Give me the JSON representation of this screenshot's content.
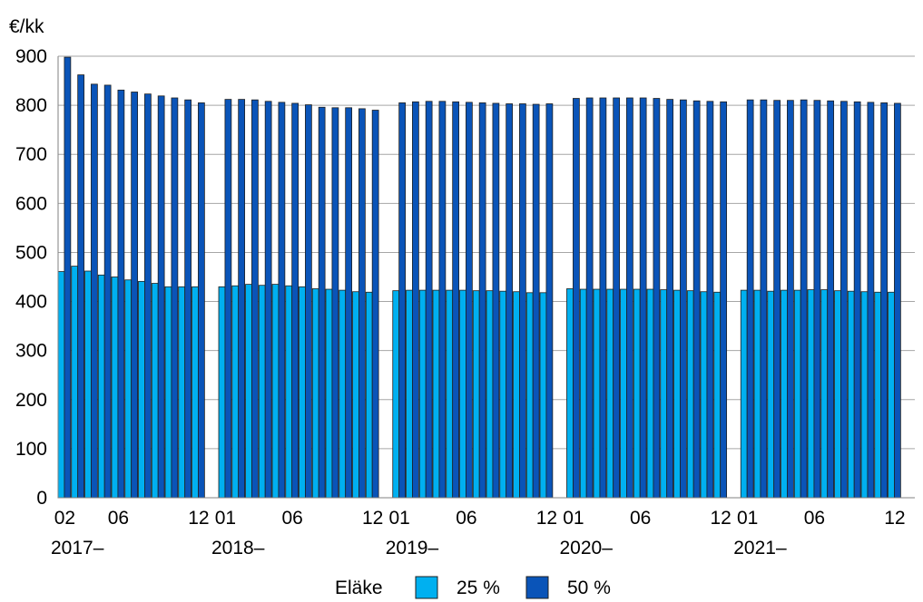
{
  "chart_data": {
    "type": "bar",
    "ylabel": "€/kk",
    "ylim": [
      0,
      900
    ],
    "yticks": [
      0,
      100,
      200,
      300,
      400,
      500,
      600,
      700,
      800,
      900
    ],
    "grid": true,
    "legend_title": "Eläke",
    "legend_position": "bottom-center",
    "groups": [
      {
        "label": "2017–",
        "months": [
          "02",
          "03",
          "04",
          "05",
          "06",
          "07",
          "08",
          "09",
          "10",
          "11",
          "12"
        ],
        "tick_labels": [
          {
            "month": "02",
            "text": "02"
          },
          {
            "month": "06",
            "text": "06"
          },
          {
            "month": "12",
            "text": "12"
          }
        ]
      },
      {
        "label": "2018–",
        "months": [
          "01",
          "02",
          "03",
          "04",
          "05",
          "06",
          "07",
          "08",
          "09",
          "10",
          "11",
          "12"
        ],
        "tick_labels": [
          {
            "month": "01",
            "text": "01"
          },
          {
            "month": "06",
            "text": "06"
          },
          {
            "month": "12",
            "text": "12"
          }
        ]
      },
      {
        "label": "2019–",
        "months": [
          "01",
          "02",
          "03",
          "04",
          "05",
          "06",
          "07",
          "08",
          "09",
          "10",
          "11",
          "12"
        ],
        "tick_labels": [
          {
            "month": "01",
            "text": "01"
          },
          {
            "month": "06",
            "text": "06"
          },
          {
            "month": "12",
            "text": "12"
          }
        ]
      },
      {
        "label": "2020–",
        "months": [
          "01",
          "02",
          "03",
          "04",
          "05",
          "06",
          "07",
          "08",
          "09",
          "10",
          "11",
          "12"
        ],
        "tick_labels": [
          {
            "month": "01",
            "text": "01"
          },
          {
            "month": "06",
            "text": "06"
          },
          {
            "month": "12",
            "text": "12"
          }
        ]
      },
      {
        "label": "2021–",
        "months": [
          "01",
          "02",
          "03",
          "04",
          "05",
          "06",
          "07",
          "08",
          "09",
          "10",
          "11",
          "12"
        ],
        "tick_labels": [
          {
            "month": "01",
            "text": "01"
          },
          {
            "month": "06",
            "text": "06"
          },
          {
            "month": "12",
            "text": "12"
          }
        ]
      }
    ],
    "series": [
      {
        "name": "25 %",
        "color": "#00b0f0",
        "values": [
          [
            461,
            472,
            462,
            454,
            450,
            444,
            441,
            437,
            430,
            430,
            430
          ],
          [
            430,
            432,
            435,
            433,
            435,
            432,
            430,
            426,
            425,
            423,
            420,
            419
          ],
          [
            422,
            423,
            423,
            423,
            423,
            423,
            422,
            422,
            421,
            420,
            418,
            418
          ],
          [
            426,
            425,
            425,
            425,
            425,
            425,
            425,
            424,
            423,
            422,
            420,
            419
          ],
          [
            423,
            423,
            421,
            423,
            423,
            424,
            424,
            422,
            421,
            420,
            419,
            419
          ]
        ]
      },
      {
        "name": "50 %",
        "color": "#0a54b8",
        "values": [
          [
            898,
            862,
            843,
            841,
            831,
            827,
            823,
            819,
            815,
            811,
            805
          ],
          [
            812,
            812,
            811,
            808,
            806,
            804,
            801,
            796,
            795,
            795,
            793,
            790
          ],
          [
            805,
            807,
            808,
            808,
            807,
            806,
            805,
            804,
            803,
            803,
            802,
            803
          ],
          [
            814,
            815,
            815,
            815,
            815,
            815,
            814,
            812,
            811,
            809,
            808,
            807
          ],
          [
            811,
            811,
            810,
            810,
            811,
            810,
            809,
            808,
            807,
            806,
            805,
            804
          ]
        ]
      }
    ]
  }
}
